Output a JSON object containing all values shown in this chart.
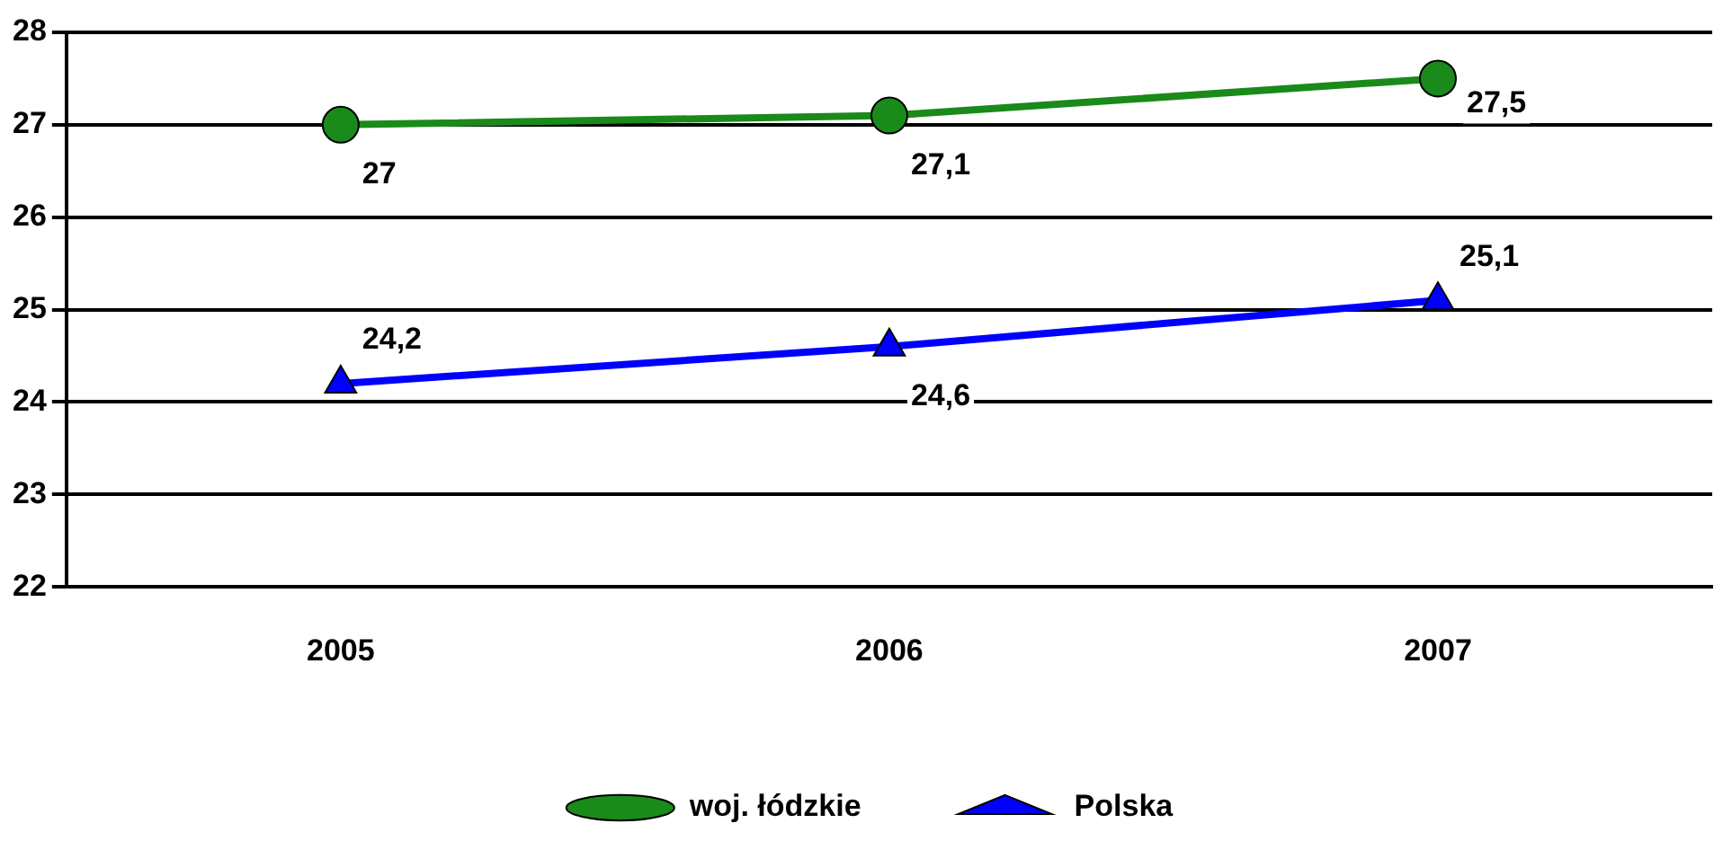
{
  "chart_data": {
    "type": "line",
    "categories": [
      "2005",
      "2006",
      "2007"
    ],
    "series": [
      {
        "name": "woj. łódzkie",
        "color": "#1a8a1a",
        "marker": "circle",
        "values": [
          27,
          27.1,
          27.5
        ],
        "value_labels": [
          "27",
          "27,1",
          "27,5"
        ]
      },
      {
        "name": "Polska",
        "color": "#0000ff",
        "marker": "triangle",
        "values": [
          24.2,
          24.6,
          25.1
        ],
        "value_labels": [
          "24,2",
          "24,6",
          "25,1"
        ]
      }
    ],
    "ylim": [
      22,
      28
    ],
    "yticks": [
      22,
      23,
      24,
      25,
      26,
      27,
      28
    ],
    "grid": "y",
    "legend": "bottom"
  }
}
